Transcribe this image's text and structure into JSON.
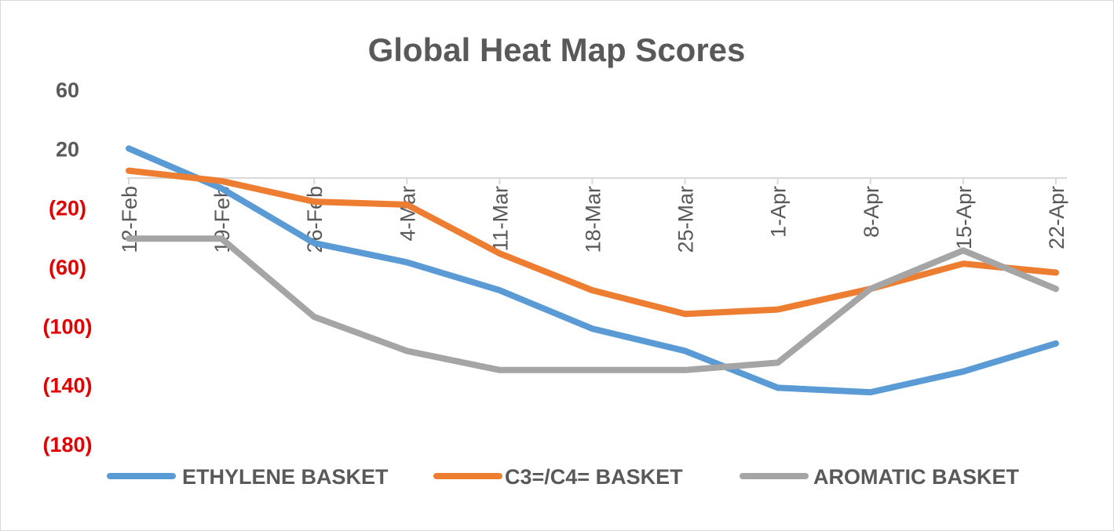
{
  "chart_data": {
    "type": "line",
    "title": "Global Heat Map Scores",
    "xlabel": "",
    "ylabel": "",
    "categories": [
      "12-Feb",
      "19-Feb",
      "26-Feb",
      "4-Mar",
      "11-Mar",
      "18-Mar",
      "25-Mar",
      "1-Apr",
      "8-Apr",
      "15-Apr",
      "22-Apr"
    ],
    "ylim": [
      -180,
      60
    ],
    "y_ticks": [
      {
        "value": 60,
        "label": "60"
      },
      {
        "value": 20,
        "label": "20"
      },
      {
        "value": -20,
        "label": "(20)"
      },
      {
        "value": -60,
        "label": "(60)"
      },
      {
        "value": -100,
        "label": "(100)"
      },
      {
        "value": -140,
        "label": "(140)"
      },
      {
        "value": -180,
        "label": "(180)"
      }
    ],
    "negative_tick_color": "#e00000",
    "positive_tick_color": "#595959",
    "grid": false,
    "legend_position": "bottom",
    "series": [
      {
        "name": "ETHYLENE BASKET",
        "color": "#5b9bd5",
        "values": [
          20,
          -7,
          -44,
          -57,
          -76,
          -102,
          -117,
          -142,
          -145,
          -131,
          -112
        ]
      },
      {
        "name": "C3=/C4= BASKET",
        "color": "#ed7d31",
        "values": [
          5,
          -2,
          -16,
          -18,
          -51,
          -76,
          -92,
          -89,
          -75,
          -58,
          -64
        ]
      },
      {
        "name": "AROMATIC BASKET",
        "color": "#a5a5a5",
        "values": [
          -41,
          -41,
          -94,
          -117,
          -130,
          -130,
          -130,
          -125,
          -75,
          -49,
          -75
        ]
      }
    ]
  }
}
